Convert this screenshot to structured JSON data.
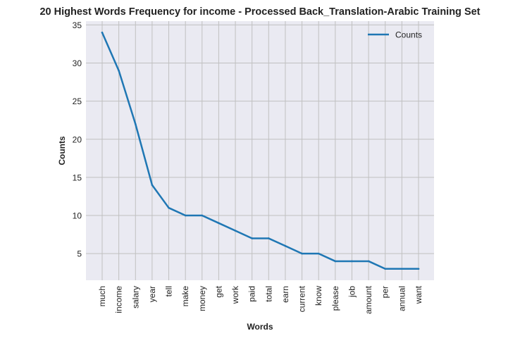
{
  "chart_data": {
    "type": "line",
    "title": "20 Highest Words Frequency for income - Processed Back_Translation-Arabic Training Set",
    "xlabel": "Words",
    "ylabel": "Counts",
    "categories": [
      "much",
      "income",
      "salary",
      "year",
      "tell",
      "make",
      "money",
      "get",
      "work",
      "paid",
      "total",
      "earn",
      "current",
      "know",
      "please",
      "job",
      "amount",
      "per",
      "annual",
      "want"
    ],
    "series": [
      {
        "name": "Counts",
        "values": [
          34,
          29,
          22,
          14,
          11,
          10,
          10,
          9,
          8,
          7,
          7,
          6,
          5,
          5,
          4,
          4,
          4,
          3,
          3,
          3
        ]
      }
    ],
    "ylim": [
      1.5,
      35.5
    ],
    "yticks": [
      5,
      10,
      15,
      20,
      25,
      30,
      35
    ],
    "grid": true,
    "legend_position": "top-right",
    "colors": {
      "line": "#1f77b4",
      "plot_background": "#eaeaf2",
      "grid": "#c0c0c0"
    }
  }
}
